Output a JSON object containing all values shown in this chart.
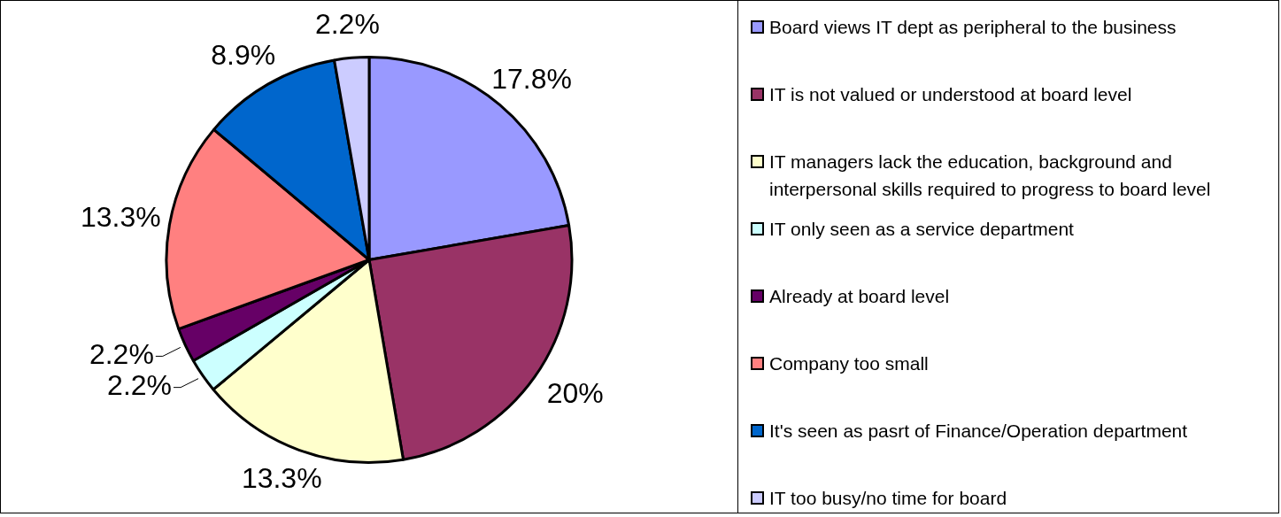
{
  "chart_data": {
    "type": "pie",
    "categories": [
      "Board views IT dept as peripheral to the business",
      "IT is not valued or understood at board level",
      "IT managers lack the education, background and interpersonal skills required to progress to board level",
      "IT only seen as a service department",
      "Already at board level",
      "Company too small",
      "It's seen as pasrt of Finance/Operation department",
      "IT too busy/no time for board"
    ],
    "values": [
      17.8,
      20,
      13.3,
      2.2,
      2.2,
      13.3,
      8.9,
      2.2
    ],
    "colors": [
      "#9999ff",
      "#993366",
      "#ffffcc",
      "#ccffff",
      "#660066",
      "#ff8080",
      "#0066cc",
      "#ccccff"
    ],
    "value_labels": [
      "17.8%",
      "20%",
      "13.3%",
      "2.2%",
      "2.2%",
      "13.3%",
      "8.9%",
      "2.2%"
    ],
    "legend": "right"
  }
}
